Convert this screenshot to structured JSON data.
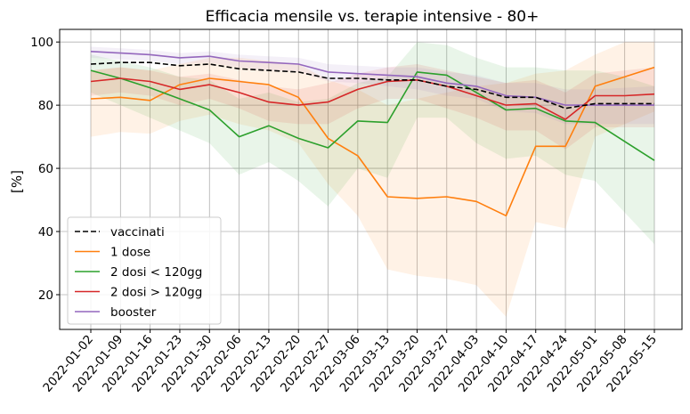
{
  "chart_data": {
    "type": "line",
    "title": "Efficacia mensile vs. terapie intensive - 80+",
    "xlabel": "",
    "ylabel": "[%]",
    "x": [
      "2022-01-02",
      "2022-01-09",
      "2022-01-16",
      "2022-01-23",
      "2022-01-30",
      "2022-02-06",
      "2022-02-13",
      "2022-02-20",
      "2022-02-27",
      "2022-03-06",
      "2022-03-13",
      "2022-03-20",
      "2022-03-27",
      "2022-04-03",
      "2022-04-10",
      "2022-04-17",
      "2022-04-24",
      "2022-05-01",
      "2022-05-08",
      "2022-05-15"
    ],
    "ylim": [
      9,
      104
    ],
    "yticks": [
      20,
      40,
      60,
      80,
      100
    ],
    "grid": true,
    "legend_position": "lower-left",
    "series": [
      {
        "name": "vaccinati",
        "color": "#000000",
        "dashed": true,
        "values": [
          93,
          93.5,
          93.5,
          92.5,
          93,
          91.5,
          91,
          90.5,
          88.5,
          88.5,
          88,
          88,
          86,
          85,
          82.5,
          82.5,
          79,
          80.5,
          80.5,
          80.5
        ],
        "band": null
      },
      {
        "name": "1 dose",
        "color": "#ff7f0e",
        "dashed": false,
        "values": [
          82,
          82.5,
          81.5,
          86.5,
          88.5,
          87.5,
          86.5,
          82.5,
          69.5,
          64,
          51,
          50.5,
          51,
          49.5,
          45,
          67,
          67,
          86,
          89,
          92
        ],
        "band": {
          "lower": [
            70,
            71.5,
            71,
            75,
            77,
            74,
            72,
            68,
            55,
            45,
            28,
            26,
            25,
            23,
            13,
            43,
            41,
            70,
            74,
            78
          ],
          "upper": [
            91,
            92,
            91,
            93,
            95,
            95,
            94,
            93,
            88,
            85,
            80,
            82,
            84,
            86,
            87,
            90,
            91,
            96,
            100,
            100
          ]
        }
      },
      {
        "name": "2 dosi < 120gg",
        "color": "#2ca02c",
        "dashed": false,
        "values": [
          91,
          88.5,
          85.5,
          82,
          78.5,
          70,
          73.5,
          69.5,
          66.5,
          75,
          74.5,
          90.5,
          89.5,
          84,
          78.5,
          79,
          75,
          74.5,
          68.5,
          62.5
        ],
        "band": {
          "lower": [
            84,
            80,
            76,
            72,
            68,
            58,
            62,
            56,
            48,
            60,
            57,
            76,
            76,
            68,
            63,
            64,
            58,
            56,
            46,
            36
          ],
          "upper": [
            96,
            94,
            92,
            89,
            88,
            82,
            84,
            81,
            82,
            87,
            89,
            100,
            99,
            95,
            92,
            92,
            91,
            91,
            89,
            86
          ]
        }
      },
      {
        "name": "2 dosi > 120gg",
        "color": "#d62728",
        "dashed": false,
        "values": [
          87.5,
          88.5,
          87.5,
          85,
          86.5,
          84,
          81,
          80,
          81,
          85,
          87.5,
          88,
          86,
          83,
          80,
          80.5,
          75.5,
          83,
          83,
          83.5
        ],
        "band": {
          "lower": [
            83,
            84,
            83,
            80,
            82,
            79,
            75,
            74,
            74,
            79,
            82,
            82,
            79,
            76,
            72,
            72,
            66,
            73,
            73,
            73
          ],
          "upper": [
            91,
            92,
            91,
            89,
            90,
            88,
            86,
            85,
            87,
            90,
            92,
            93,
            91,
            89,
            87,
            88,
            84,
            90,
            91,
            92
          ]
        }
      },
      {
        "name": "booster",
        "color": "#9467bd",
        "dashed": false,
        "values": [
          97,
          96.5,
          96,
          95,
          95.5,
          94,
          93.5,
          93,
          90.5,
          90,
          89.5,
          89,
          87,
          86,
          83,
          82.5,
          80,
          80,
          80,
          80
        ],
        "band": {
          "lower": [
            95,
            94.5,
            94,
            93,
            93.5,
            92,
            91,
            90.5,
            87.5,
            87,
            86,
            85,
            83,
            82,
            78,
            77.5,
            74,
            74,
            74,
            74
          ],
          "upper": [
            98.5,
            98,
            97.5,
            96.5,
            97,
            96,
            95.5,
            95,
            93,
            92.5,
            92,
            92,
            90.5,
            89.5,
            87,
            87,
            85,
            85,
            85.5,
            86
          ]
        }
      }
    ]
  }
}
